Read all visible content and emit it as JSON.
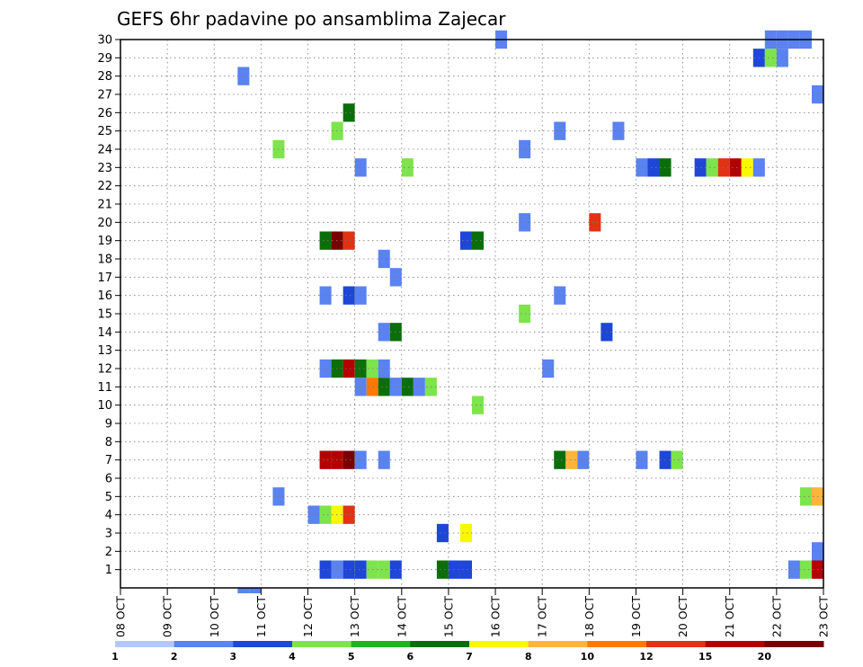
{
  "chart_data": {
    "type": "heatmap",
    "title": "GEFS 6hr padavine po ansamblima Zajecar",
    "x_tick_labels": [
      "08 OCT",
      "09 OCT",
      "10 OCT",
      "11 OCT",
      "12 OCT",
      "13 OCT",
      "14 OCT",
      "15 OCT",
      "16 OCT",
      "17 OCT",
      "18 OCT",
      "19 OCT",
      "20 OCT",
      "21 OCT",
      "22 OCT",
      "23 OCT"
    ],
    "xlim": [
      0,
      60
    ],
    "y_tick_labels": [
      1,
      2,
      3,
      4,
      5,
      6,
      7,
      8,
      9,
      10,
      11,
      12,
      13,
      14,
      15,
      16,
      17,
      18,
      19,
      20,
      21,
      22,
      23,
      24,
      25,
      26,
      27,
      28,
      29,
      30
    ],
    "ylim": [
      0,
      30
    ],
    "grid": true,
    "colorbar": {
      "labels": [
        "1",
        "2",
        "3",
        "4",
        "5",
        "6",
        "7",
        "8",
        "10",
        "12",
        "15",
        "20"
      ],
      "colors": [
        "#b4c8f8",
        "#5a82f0",
        "#1e46d7",
        "#7de44b",
        "#1eb41e",
        "#0a6e0a",
        "#f8f800",
        "#ffb43c",
        "#ff7800",
        "#e13214",
        "#b40000",
        "#780000"
      ]
    },
    "cells": [
      [
        17,
        1,
        2
      ],
      [
        18,
        1,
        1
      ],
      [
        19,
        1,
        2
      ],
      [
        20,
        1,
        2
      ],
      [
        21,
        1,
        3
      ],
      [
        22,
        1,
        3
      ],
      [
        23,
        1,
        2
      ],
      [
        27,
        1,
        5
      ],
      [
        28,
        1,
        2
      ],
      [
        29,
        1,
        2
      ],
      [
        57,
        1,
        1
      ],
      [
        58,
        1,
        3
      ],
      [
        59,
        1,
        10
      ],
      [
        59,
        2,
        1
      ],
      [
        27,
        3,
        2
      ],
      [
        29,
        3,
        6
      ],
      [
        16,
        4,
        1
      ],
      [
        17,
        4,
        3
      ],
      [
        18,
        4,
        6
      ],
      [
        19,
        4,
        9
      ],
      [
        59,
        5,
        7
      ],
      [
        58,
        5,
        3
      ],
      [
        13,
        5,
        1
      ],
      [
        18,
        7,
        10
      ],
      [
        17,
        7,
        10
      ],
      [
        19,
        7,
        11
      ],
      [
        20,
        7,
        1
      ],
      [
        22,
        7,
        1
      ],
      [
        37,
        7,
        5
      ],
      [
        38,
        7,
        7
      ],
      [
        39,
        7,
        1
      ],
      [
        44,
        7,
        1
      ],
      [
        46,
        7,
        2
      ],
      [
        47,
        7,
        3
      ],
      [
        30,
        10,
        3
      ],
      [
        20,
        11,
        1
      ],
      [
        21,
        11,
        8
      ],
      [
        22,
        11,
        5
      ],
      [
        23,
        11,
        1
      ],
      [
        24,
        11,
        5
      ],
      [
        25,
        11,
        1
      ],
      [
        26,
        11,
        3
      ],
      [
        17,
        12,
        1
      ],
      [
        18,
        12,
        5
      ],
      [
        19,
        12,
        10
      ],
      [
        20,
        12,
        5
      ],
      [
        21,
        12,
        3
      ],
      [
        22,
        12,
        1
      ],
      [
        36,
        12,
        1
      ],
      [
        22,
        14,
        1
      ],
      [
        23,
        14,
        5
      ],
      [
        41,
        14,
        2
      ],
      [
        34,
        15,
        3
      ],
      [
        17,
        16,
        1
      ],
      [
        19,
        16,
        2
      ],
      [
        20,
        16,
        1
      ],
      [
        37,
        16,
        1
      ],
      [
        23,
        17,
        1
      ],
      [
        22,
        18,
        1
      ],
      [
        17,
        19,
        5
      ],
      [
        18,
        19,
        11
      ],
      [
        19,
        19,
        9
      ],
      [
        29,
        19,
        2
      ],
      [
        30,
        19,
        5
      ],
      [
        40,
        20,
        9
      ],
      [
        34,
        20,
        1
      ],
      [
        20,
        23,
        1
      ],
      [
        24,
        23,
        3
      ],
      [
        44,
        23,
        1
      ],
      [
        45,
        23,
        2
      ],
      [
        46,
        23,
        5
      ],
      [
        49,
        23,
        2
      ],
      [
        50,
        23,
        3
      ],
      [
        51,
        23,
        9
      ],
      [
        52,
        23,
        10
      ],
      [
        53,
        23,
        6
      ],
      [
        54,
        23,
        1
      ],
      [
        34,
        24,
        1
      ],
      [
        13,
        24,
        3
      ],
      [
        18,
        25,
        3
      ],
      [
        37,
        25,
        1
      ],
      [
        42,
        25,
        1
      ],
      [
        19,
        26,
        5
      ],
      [
        59,
        27,
        1
      ],
      [
        10,
        28,
        1
      ],
      [
        54,
        29,
        2
      ],
      [
        55,
        29,
        3
      ],
      [
        56,
        29,
        1
      ],
      [
        58,
        30,
        1
      ],
      [
        55,
        30,
        1
      ],
      [
        56,
        30,
        1
      ],
      [
        57,
        30,
        1
      ],
      [
        32,
        30,
        1
      ],
      [
        10,
        -1,
        1
      ],
      [
        11,
        -1,
        1
      ]
    ]
  }
}
